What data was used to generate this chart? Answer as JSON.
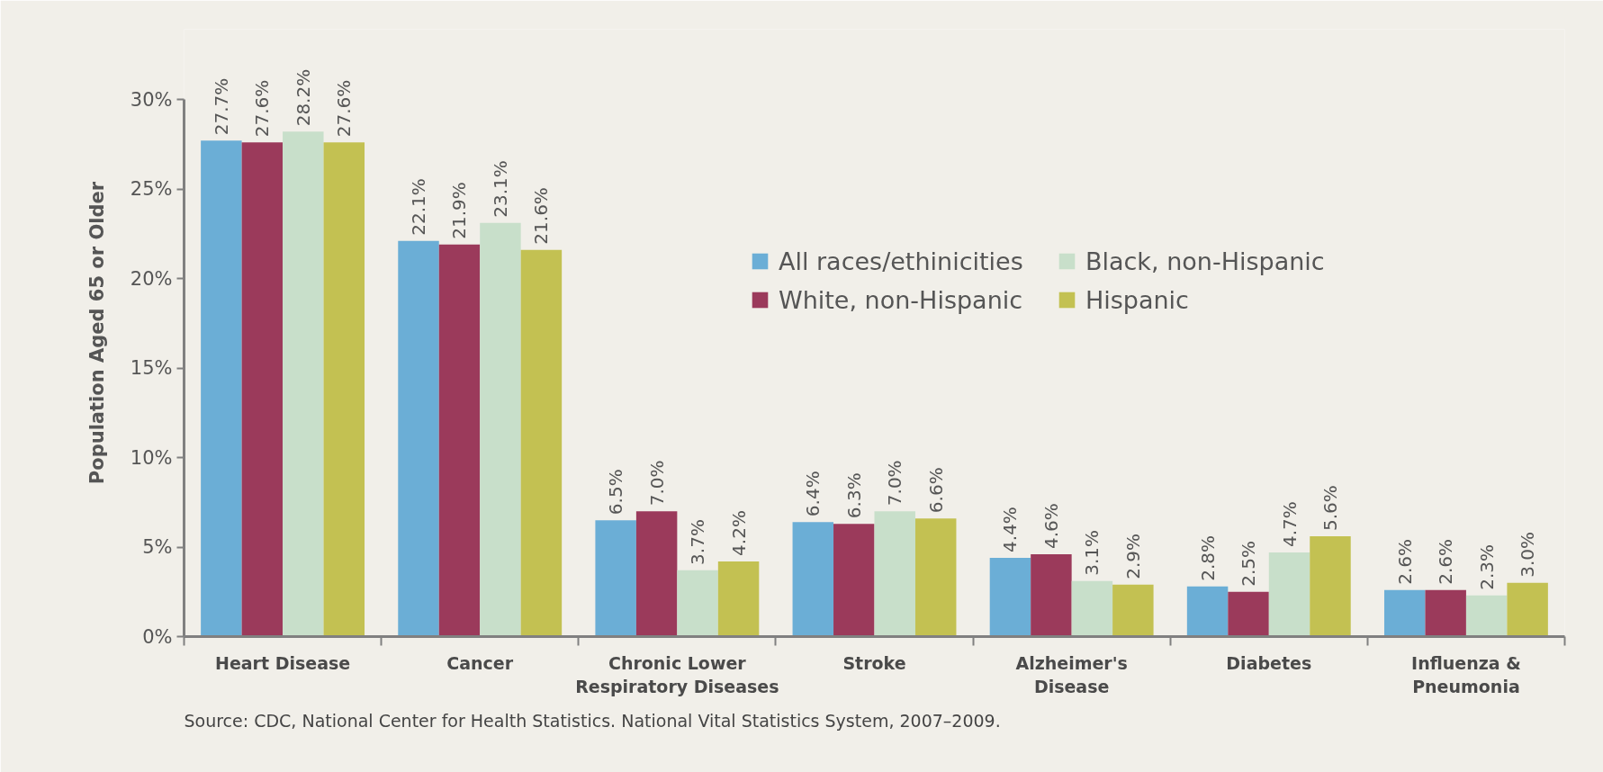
{
  "chart_data": {
    "type": "bar",
    "ylabel": "Population Aged 65 or Older",
    "categories": [
      "Heart Disease",
      "Cancer",
      "Chronic Lower\nRespiratory Diseases",
      "Stroke",
      "Alzheimer's\nDisease",
      "Diabetes",
      "Influenza &\nPneumonia"
    ],
    "series": [
      {
        "name": "All races/ethinicities",
        "color": "#6baed6",
        "values": [
          27.7,
          22.1,
          6.5,
          6.4,
          4.4,
          2.8,
          2.6
        ],
        "value_labels": [
          "27.7%",
          "22.1%",
          "6.5%",
          "6.4%",
          "4.4%",
          "2.8%",
          "2.6%"
        ]
      },
      {
        "name": "White, non-Hispanic",
        "color": "#9b3a5b",
        "values": [
          27.6,
          21.9,
          7.0,
          6.3,
          4.6,
          2.5,
          2.6
        ],
        "value_labels": [
          "27.6%",
          "21.9%",
          "7.0%",
          "6.3%",
          "4.6%",
          "2.5%",
          "2.6%"
        ]
      },
      {
        "name": "Black, non-Hispanic",
        "color": "#c8dfca",
        "values": [
          28.2,
          23.1,
          3.7,
          7.0,
          3.1,
          4.7,
          2.3
        ],
        "value_labels": [
          "28.2%",
          "23.1%",
          "3.7%",
          "7.0%",
          "3.1%",
          "4.7%",
          "2.3%"
        ]
      },
      {
        "name": "Hispanic",
        "color": "#c3c152",
        "values": [
          27.6,
          21.6,
          4.2,
          6.6,
          2.9,
          5.6,
          3.0
        ],
        "value_labels": [
          "27.6%",
          "21.6%",
          "4.2%",
          "6.6%",
          "2.9%",
          "5.6%",
          "3.0%"
        ]
      }
    ],
    "ylim": [
      0,
      30
    ],
    "yticks": [
      {
        "value": 0,
        "label": "0%"
      },
      {
        "value": 5,
        "label": "5%"
      },
      {
        "value": 10,
        "label": "10%"
      },
      {
        "value": 15,
        "label": "15%"
      },
      {
        "value": 20,
        "label": "20%"
      },
      {
        "value": 25,
        "label": "25%"
      },
      {
        "value": 30,
        "label": "30%"
      }
    ],
    "legend": "right",
    "annotations": [
      "Source: CDC, National Center for Health Statistics. National Vital Statistics System, 2007–2009."
    ]
  }
}
